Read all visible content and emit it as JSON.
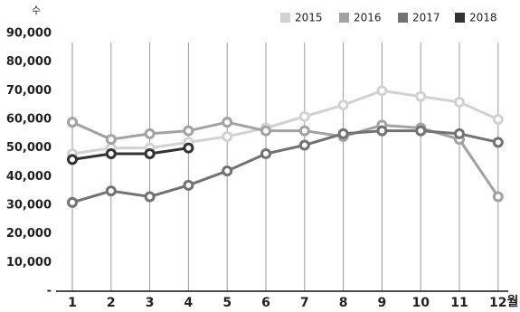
{
  "chart_data": {
    "type": "line",
    "y_unit": "수",
    "x_unit": "월",
    "categories": [
      "1",
      "2",
      "3",
      "4",
      "5",
      "6",
      "7",
      "8",
      "9",
      "10",
      "11",
      "12"
    ],
    "series": [
      {
        "name": "2015",
        "color": "#d2d2d2",
        "values": [
          48000,
          50000,
          50000,
          52000,
          54000,
          57000,
          61000,
          65000,
          70000,
          68000,
          66000,
          60000
        ]
      },
      {
        "name": "2016",
        "color": "#a2a2a2",
        "values": [
          59000,
          53000,
          55000,
          56000,
          59000,
          56000,
          56000,
          54000,
          58000,
          57000,
          53000,
          33000
        ]
      },
      {
        "name": "2017",
        "color": "#727272",
        "values": [
          31000,
          35000,
          33000,
          37000,
          42000,
          48000,
          51000,
          55000,
          56000,
          56000,
          55000,
          52000
        ]
      },
      {
        "name": "2018",
        "color": "#333333",
        "values": [
          46000,
          48000,
          48000,
          50000,
          null,
          null,
          null,
          null,
          null,
          null,
          null,
          null
        ]
      }
    ],
    "ylim": [
      0,
      90000
    ],
    "yticks": [
      {
        "value": 0,
        "label": "-"
      },
      {
        "value": 10000,
        "label": "10,000"
      },
      {
        "value": 20000,
        "label": "20,000"
      },
      {
        "value": 30000,
        "label": "30,000"
      },
      {
        "value": 40000,
        "label": "40,000"
      },
      {
        "value": 50000,
        "label": "50,000"
      },
      {
        "value": 60000,
        "label": "60,000"
      },
      {
        "value": 70000,
        "label": "70,000"
      },
      {
        "value": 80000,
        "label": "80,000"
      },
      {
        "value": 90000,
        "label": "90,000"
      }
    ],
    "grid": true
  }
}
